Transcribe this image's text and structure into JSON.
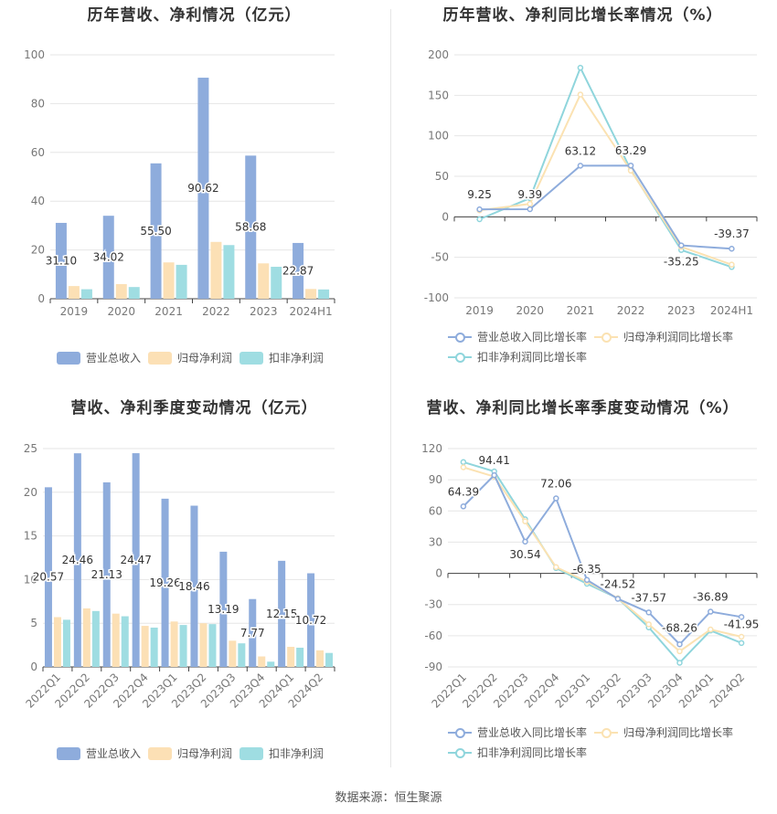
{
  "source": "数据来源：恒生聚源",
  "colors": {
    "revenue": "#8eacdc",
    "net_profit": "#fce0b5",
    "deducted_profit": "#9fdde2",
    "revenue_line": "#8eacdc",
    "net_line": "#fbe2b2",
    "deducted_line": "#8fd5dc"
  },
  "chart_data": [
    {
      "id": "annual_bar",
      "type": "bar",
      "title": "历年营收、净利情况（亿元）",
      "categories": [
        "2019",
        "2020",
        "2021",
        "2022",
        "2023",
        "2024H1"
      ],
      "ylim": [
        0,
        100
      ],
      "yticks": [
        "0",
        "20",
        "40",
        "60",
        "80",
        "100"
      ],
      "grid": true,
      "legend_position": "bottom",
      "series": [
        {
          "name": "营业总收入",
          "values": [
            31.1,
            34.02,
            55.5,
            90.62,
            58.68,
            22.87
          ],
          "labels": [
            "31.10",
            "34.02",
            "55.50",
            "90.62",
            "58.68",
            "22.87"
          ]
        },
        {
          "name": "归母净利润",
          "values": [
            5.2,
            6.0,
            14.9,
            23.3,
            14.5,
            4.0
          ]
        },
        {
          "name": "扣非净利润",
          "values": [
            3.9,
            4.8,
            13.9,
            22.0,
            13.1,
            3.8
          ]
        }
      ]
    },
    {
      "id": "annual_line",
      "type": "line",
      "title": "历年营收、净利同比增长率情况（%）",
      "categories": [
        "2019",
        "2020",
        "2021",
        "2022",
        "2023",
        "2024H1"
      ],
      "ylim": [
        -100,
        200
      ],
      "yticks": [
        "-100",
        "-50",
        "0",
        "50",
        "100",
        "150",
        "200"
      ],
      "grid": true,
      "legend_position": "bottom",
      "series": [
        {
          "name": "营业总收入同比增长率",
          "values": [
            9.25,
            9.39,
            63.12,
            63.29,
            -35.25,
            -39.37
          ],
          "labels": [
            "9.25",
            "9.39",
            "63.12",
            "63.29",
            "-35.25",
            "-39.37"
          ]
        },
        {
          "name": "归母净利润同比增长率",
          "values": [
            8,
            16,
            151,
            57,
            -37,
            -59
          ]
        },
        {
          "name": "扣非净利润同比增长率",
          "values": [
            -3,
            23,
            184,
            58,
            -41,
            -62
          ]
        }
      ]
    },
    {
      "id": "quarterly_bar",
      "type": "bar",
      "title": "营收、净利季度变动情况（亿元）",
      "categories": [
        "2022Q1",
        "2022Q2",
        "2022Q3",
        "2022Q4",
        "2023Q1",
        "2023Q2",
        "2023Q3",
        "2023Q4",
        "2024Q1",
        "2024Q2"
      ],
      "ylim": [
        0,
        25
      ],
      "yticks": [
        "0",
        "5",
        "10",
        "15",
        "20",
        "25"
      ],
      "grid": true,
      "legend_position": "bottom",
      "series": [
        {
          "name": "营业总收入",
          "values": [
            20.57,
            24.46,
            21.13,
            24.47,
            19.26,
            18.46,
            13.19,
            7.77,
            12.15,
            10.72
          ],
          "labels": [
            "20.57",
            "24.46",
            "21.13",
            "24.47",
            "19.26",
            "18.46",
            "13.19",
            "7.77",
            "12.15",
            "10.72"
          ]
        },
        {
          "name": "归母净利润",
          "values": [
            5.7,
            6.7,
            6.1,
            4.7,
            5.2,
            5.0,
            3.0,
            1.2,
            2.3,
            1.9
          ]
        },
        {
          "name": "扣非净利润",
          "values": [
            5.4,
            6.4,
            5.8,
            4.5,
            4.8,
            4.9,
            2.7,
            0.6,
            2.2,
            1.6
          ]
        }
      ]
    },
    {
      "id": "quarterly_line",
      "type": "line",
      "title": "营收、净利同比增长率季度变动情况（%）",
      "categories": [
        "2022Q1",
        "2022Q2",
        "2022Q3",
        "2022Q4",
        "2023Q1",
        "2023Q2",
        "2023Q3",
        "2023Q4",
        "2024Q1",
        "2024Q2"
      ],
      "ylim": [
        -90,
        120
      ],
      "yticks": [
        "-90",
        "-60",
        "-30",
        "0",
        "30",
        "60",
        "90",
        "120"
      ],
      "grid": true,
      "legend_position": "bottom",
      "series": [
        {
          "name": "营业总收入同比增长率",
          "values": [
            64.39,
            94.41,
            30.54,
            72.06,
            -6.35,
            -24.52,
            -37.57,
            -68.26,
            -36.89,
            -41.95
          ],
          "labels": [
            "64.39",
            "94.41",
            "30.54",
            "72.06",
            "-6.35",
            "-24.52",
            "-37.57",
            "-68.26",
            "-36.89",
            "-41.95"
          ]
        },
        {
          "name": "归母净利润同比增长率",
          "values": [
            102,
            93,
            50,
            6,
            -8,
            -24,
            -49,
            -75,
            -54,
            -61
          ]
        },
        {
          "name": "扣非净利润同比增长率",
          "values": [
            107,
            98,
            52,
            5,
            -10,
            -24,
            -52,
            -86,
            -55,
            -67
          ]
        }
      ]
    }
  ]
}
